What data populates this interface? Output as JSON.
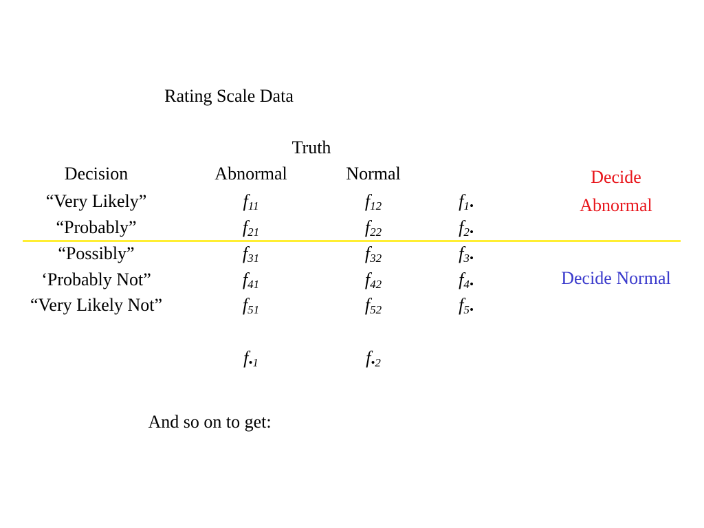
{
  "title": "Rating Scale Data",
  "truth_label": "Truth",
  "table": {
    "headers": [
      "Decision",
      "Abnormal",
      "Normal"
    ],
    "rows": [
      {
        "decision": "“Very Likely”",
        "cells": [
          {
            "symbol": "f",
            "subscript": "11"
          },
          {
            "symbol": "f",
            "subscript": "12"
          }
        ],
        "total": {
          "symbol": "f",
          "subscript": "1•"
        }
      },
      {
        "decision": "“Probably”",
        "cells": [
          {
            "symbol": "f",
            "subscript": "21"
          },
          {
            "symbol": "f",
            "subscript": "22"
          }
        ],
        "total": {
          "symbol": "f",
          "subscript": "2•"
        }
      },
      {
        "decision": "“Possibly”",
        "cells": [
          {
            "symbol": "f",
            "subscript": "31"
          },
          {
            "symbol": "f",
            "subscript": "32"
          }
        ],
        "total": {
          "symbol": "f",
          "subscript": "3•"
        }
      },
      {
        "decision": "‘Probably Not”",
        "cells": [
          {
            "symbol": "f",
            "subscript": "41"
          },
          {
            "symbol": "f",
            "subscript": "42"
          }
        ],
        "total": {
          "symbol": "f",
          "subscript": "4•"
        }
      },
      {
        "decision": "“Very Likely Not”",
        "cells": [
          {
            "symbol": "f",
            "subscript": "51"
          },
          {
            "symbol": "f",
            "subscript": "52"
          }
        ],
        "total": {
          "symbol": "f",
          "subscript": "5•"
        }
      }
    ],
    "column_totals": [
      {
        "symbol": "f",
        "subscript": "•1"
      },
      {
        "symbol": "f",
        "subscript": "•2"
      }
    ]
  },
  "side_labels": [
    {
      "text": "Decide Abnormal",
      "color": "#e8141a"
    },
    {
      "text": "Decide Normal",
      "color": "#3a3acc"
    }
  ],
  "threshold_color": "#ffee33",
  "footer": "And so on to get:"
}
